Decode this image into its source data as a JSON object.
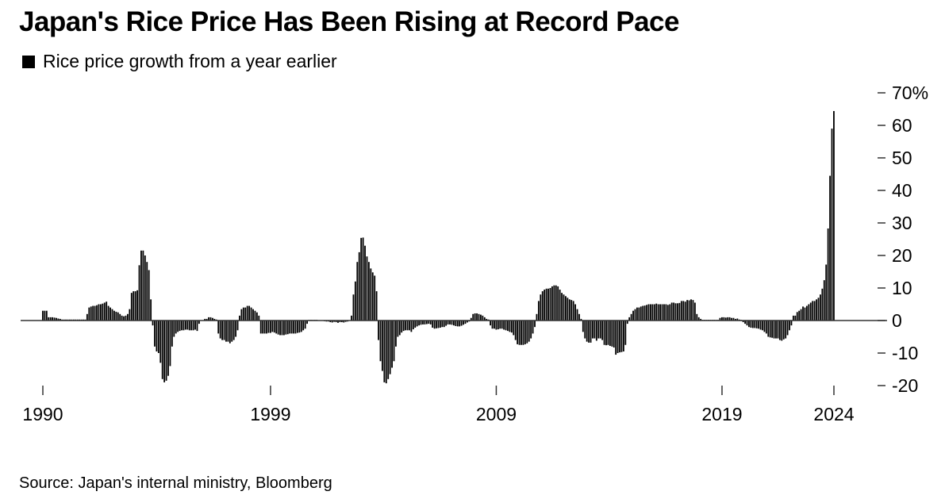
{
  "chart_data": {
    "type": "bar",
    "title": "Japan's Rice Price Has Been Rising at Record Pace",
    "legend": [
      "Rice price growth from a year earlier"
    ],
    "legend_position": "top-left",
    "source": "Source: Japan's internal ministry, Bloomberg",
    "xlabel": "",
    "ylabel": "",
    "frequency": "monthly",
    "ylim": [
      -20,
      70
    ],
    "y_ticks": [
      {
        "value": 70,
        "label": "70%"
      },
      {
        "value": 60,
        "label": "60"
      },
      {
        "value": 50,
        "label": "50"
      },
      {
        "value": 40,
        "label": "40"
      },
      {
        "value": 30,
        "label": "30"
      },
      {
        "value": 20,
        "label": "20"
      },
      {
        "value": 10,
        "label": "10"
      },
      {
        "value": 0,
        "label": "0"
      },
      {
        "value": -10,
        "label": "-10"
      },
      {
        "value": -20,
        "label": "-20"
      }
    ],
    "x_ticks": [
      {
        "index": 0,
        "label": "1990"
      },
      {
        "index": 118,
        "label": "1999"
      },
      {
        "index": 235,
        "label": "2009"
      },
      {
        "index": 352,
        "label": "2019"
      },
      {
        "index": 410,
        "label": "2024"
      }
    ],
    "grid": false,
    "colors": {
      "bar": "#000000",
      "axis": "#333333"
    },
    "values": [
      3,
      3,
      3,
      1,
      1,
      1,
      0.9,
      0.8,
      0.6,
      0.5,
      0.3,
      0.3,
      0.3,
      0.3,
      0.3,
      0.3,
      0.3,
      0.3,
      0.3,
      0.3,
      0.3,
      0.3,
      0.3,
      2,
      4,
      4.3,
      4.5,
      4.5,
      4.7,
      5,
      5,
      5.2,
      5.5,
      5.8,
      4.5,
      4,
      3.5,
      3,
      2.7,
      2.5,
      2,
      1.5,
      1.3,
      1.5,
      2,
      3.5,
      8.5,
      9,
      9,
      9.3,
      17,
      21.5,
      21.5,
      20,
      18,
      15.5,
      6.5,
      -1.5,
      -8,
      -9.5,
      -10,
      -13,
      -18,
      -19,
      -18.5,
      -17,
      -14,
      -8,
      -5,
      -4,
      -3.5,
      -3.2,
      -3,
      -3,
      -2.8,
      -2.8,
      -3,
      -3,
      -3,
      -2.8,
      -3.2,
      -1,
      0,
      0,
      0.5,
      0.5,
      1,
      1,
      0.8,
      0.5,
      0.3,
      -4,
      -5.5,
      -6,
      -6,
      -6.5,
      -6.5,
      -7,
      -6.5,
      -6,
      -5,
      -3,
      1.5,
      3.5,
      4,
      4,
      4.5,
      4.5,
      4,
      3.5,
      3,
      2.5,
      1.5,
      -4,
      -4,
      -4,
      -4,
      -3.8,
      -3.8,
      -3.5,
      -3.7,
      -4,
      -4.3,
      -4.5,
      -4.5,
      -4.5,
      -4.3,
      -4.2,
      -4,
      -4,
      -4,
      -4,
      -3.8,
      -3.7,
      -3.5,
      -3,
      -2.5,
      -1,
      0.2,
      0.2,
      0.2,
      0.2,
      0.2,
      0.1,
      0.1,
      0,
      -0.2,
      -0.3,
      -0.3,
      -0.5,
      -0.6,
      -0.4,
      -0.5,
      -0.7,
      -0.5,
      -0.5,
      -0.6,
      -0.4,
      -0.3,
      0,
      1.5,
      8,
      12,
      18,
      21,
      25.4,
      25.5,
      23,
      19.7,
      18,
      16,
      14.8,
      13.8,
      9,
      -6,
      -12.5,
      -15.5,
      -19,
      -19.3,
      -18,
      -16.5,
      -14.5,
      -12.5,
      -8,
      -5,
      -4.5,
      -3.7,
      -3.2,
      -3,
      -3,
      -3,
      -3.5,
      -2.7,
      -2.2,
      -1.8,
      -1.5,
      -1.3,
      -1.2,
      -1.2,
      -1.1,
      -1,
      -1.2,
      -2.2,
      -2.5,
      -2.4,
      -2.3,
      -2.2,
      -2,
      -2,
      -1.6,
      -1.2,
      -1.2,
      -1.3,
      -1.5,
      -1.7,
      -1.8,
      -1.8,
      -1.6,
      -1.3,
      -1,
      -0.6,
      -0.3,
      0.8,
      2,
      2.2,
      2.2,
      2,
      1.8,
      1.5,
      1,
      0.5,
      0.3,
      -1.5,
      -2.5,
      -2.5,
      -2.8,
      -2.7,
      -2.5,
      -2.5,
      -2.8,
      -3,
      -3.2,
      -3.5,
      -3.7,
      -4.5,
      -6,
      -7.3,
      -7.5,
      -7.5,
      -7.5,
      -7.3,
      -7,
      -6.5,
      -5.5,
      -4,
      -2,
      2,
      6,
      8,
      9,
      9.5,
      9.8,
      9.8,
      10,
      10.5,
      10.8,
      10.8,
      10.5,
      9.5,
      8.5,
      8,
      7.5,
      7,
      6.5,
      6.3,
      6,
      5,
      3.5,
      2,
      0.5,
      -3.5,
      -5.5,
      -6.5,
      -6.8,
      -6.8,
      -5.5,
      -5.5,
      -6.2,
      -5.5,
      -5.5,
      -6,
      -7.5,
      -7.6,
      -7.5,
      -7.8,
      -8,
      -8.3,
      -10.5,
      -10,
      -9.8,
      -9.7,
      -9.5,
      -7.5,
      -1,
      1,
      2,
      3,
      3.5,
      4,
      4,
      4.3,
      4.5,
      4.6,
      4.8,
      5,
      5,
      5,
      5,
      5.2,
      5,
      5,
      5,
      5,
      5,
      4.8,
      5,
      5.5,
      5.5,
      5.3,
      5.3,
      5.4,
      6,
      6,
      5.8,
      6.3,
      6.2,
      6.5,
      6.3,
      5.5,
      2,
      1,
      0.5,
      0.2,
      0.2,
      0.2,
      0.2,
      0.2,
      0.2,
      0.2,
      0.2,
      0.2,
      0.8,
      1,
      1,
      0.9,
      1,
      1,
      0.8,
      0.8,
      0.5,
      0.6,
      0.3,
      0.2,
      -0.5,
      -1,
      -1.5,
      -2,
      -2.2,
      -2.3,
      -2.3,
      -2.4,
      -2.5,
      -2.8,
      -3,
      -3.5,
      -4,
      -5,
      -5.2,
      -5.3,
      -5.5,
      -5.5,
      -5.5,
      -6,
      -6.2,
      -5.8,
      -5.5,
      -4.5,
      -3,
      -1.5,
      1.5,
      1.5,
      2.6,
      3,
      3.5,
      4.3,
      4,
      4.5,
      5,
      5.5,
      6,
      6,
      6.5,
      7,
      8,
      9.8,
      12.4,
      17.2,
      28.3,
      44.5,
      59,
      64.4
    ]
  }
}
